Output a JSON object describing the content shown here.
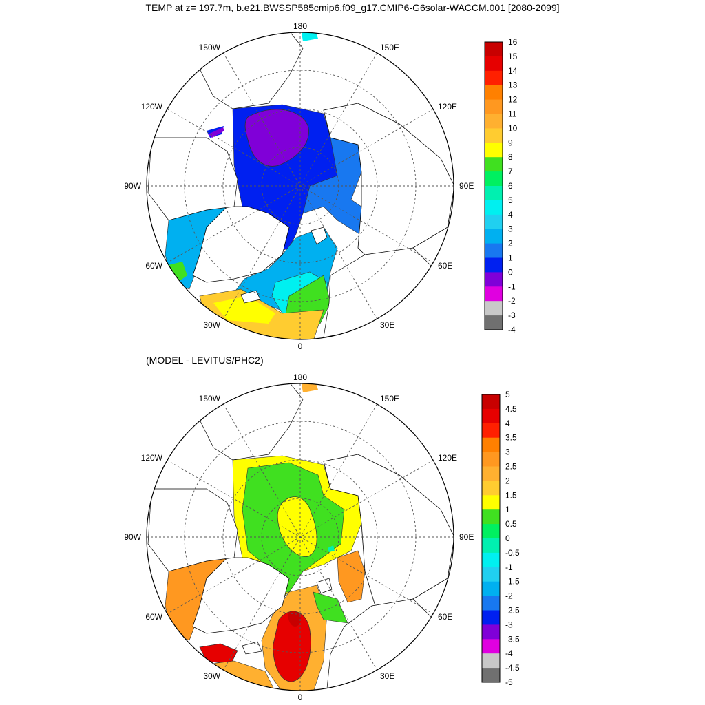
{
  "title": "TEMP at z= 197.7m, b.e21.BWSSP585cmip6.f09_g17.CMIP6-G6solar-WACCM.001 [2080-2099]",
  "subtitle": "(MODEL - LEVITUS/PHC2)",
  "longitude_labels": {
    "lon_180": "180",
    "lon_150w": "150W",
    "lon_150e": "150E",
    "lon_120w": "120W",
    "lon_120e": "120E",
    "lon_90w": "90W",
    "lon_90e": "90E",
    "lon_60w": "60W",
    "lon_60e": "60E",
    "lon_30w": "30W",
    "lon_30e": "30E",
    "lon_0": "0"
  },
  "colorbars": [
    {
      "labels": [
        "16",
        "15",
        "14",
        "13",
        "12",
        "11",
        "10",
        "9",
        "8",
        "7",
        "6",
        "5",
        "4",
        "3",
        "2",
        "1",
        "0",
        "-1",
        "-2",
        "-3",
        "-4"
      ],
      "colors": [
        "#c80000",
        "#e60000",
        "#ff2000",
        "#ff8000",
        "#ff9820",
        "#ffb030",
        "#ffcc30",
        "#ffff00",
        "#40e020",
        "#00f060",
        "#00f0b0",
        "#00f0f0",
        "#20d0f0",
        "#00b0f0",
        "#1878f0",
        "#0020f0",
        "#8000d8",
        "#e000e0",
        "#c8c8c8",
        "#707070"
      ]
    },
    {
      "labels": [
        "5",
        "4.5",
        "4",
        "3.5",
        "3",
        "2.5",
        "2",
        "1.5",
        "1",
        "0.5",
        "0",
        "-0.5",
        "-1",
        "-1.5",
        "-2",
        "-2.5",
        "-3",
        "-3.5",
        "-4",
        "-4.5",
        "-5"
      ],
      "colors": [
        "#c80000",
        "#e60000",
        "#ff2000",
        "#ff8000",
        "#ff9820",
        "#ffb030",
        "#ffcc30",
        "#ffff00",
        "#40e020",
        "#00f060",
        "#00f0b0",
        "#00f0f0",
        "#20d0f0",
        "#00b0f0",
        "#1878f0",
        "#0020f0",
        "#8000d8",
        "#e000e0",
        "#c8c8c8",
        "#707070"
      ]
    }
  ]
}
